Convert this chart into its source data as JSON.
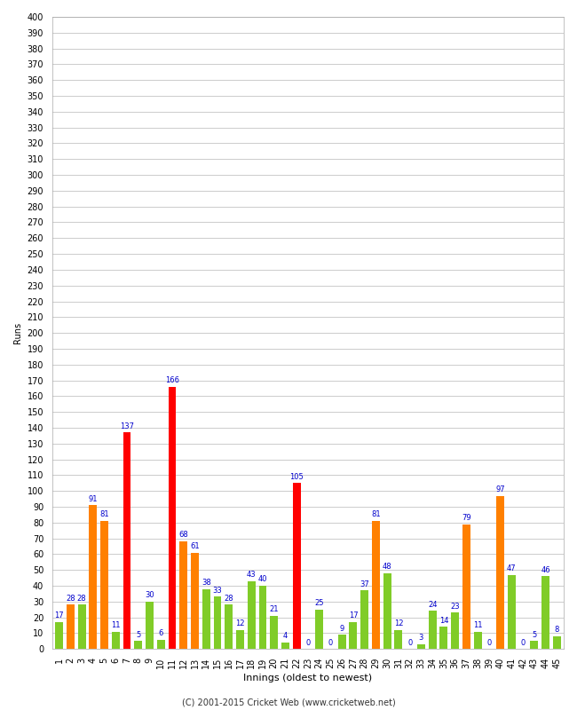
{
  "xlabel": "Innings (oldest to newest)",
  "ylabel": "Runs",
  "footer": "(C) 2001-2015 Cricket Web (www.cricketweb.net)",
  "ylim": [
    0,
    400
  ],
  "innings": [
    1,
    2,
    3,
    4,
    5,
    6,
    7,
    8,
    9,
    10,
    11,
    12,
    13,
    14,
    15,
    16,
    17,
    18,
    19,
    20,
    21,
    22,
    23,
    24,
    25,
    26,
    27,
    28,
    29,
    30,
    31,
    32,
    33,
    34,
    35,
    36,
    37,
    38,
    39,
    40,
    41,
    42,
    43,
    44,
    45
  ],
  "values": [
    17,
    28,
    28,
    91,
    81,
    11,
    137,
    5,
    30,
    6,
    166,
    68,
    61,
    38,
    33,
    28,
    12,
    43,
    40,
    21,
    4,
    105,
    0,
    25,
    0,
    9,
    17,
    37,
    81,
    48,
    12,
    0,
    3,
    24,
    14,
    23,
    79,
    11,
    0,
    97,
    47,
    0,
    5,
    46,
    8
  ],
  "colors": [
    "#80cc28",
    "#ff8000",
    "#80cc28",
    "#ff8000",
    "#ff8000",
    "#80cc28",
    "#ff0000",
    "#80cc28",
    "#80cc28",
    "#80cc28",
    "#ff0000",
    "#ff8000",
    "#ff8000",
    "#80cc28",
    "#80cc28",
    "#80cc28",
    "#80cc28",
    "#80cc28",
    "#80cc28",
    "#80cc28",
    "#80cc28",
    "#ff0000",
    "#80cc28",
    "#80cc28",
    "#80cc28",
    "#80cc28",
    "#80cc28",
    "#80cc28",
    "#ff8000",
    "#80cc28",
    "#80cc28",
    "#80cc28",
    "#80cc28",
    "#80cc28",
    "#80cc28",
    "#80cc28",
    "#ff8000",
    "#80cc28",
    "#80cc28",
    "#ff8000",
    "#80cc28",
    "#80cc28",
    "#80cc28",
    "#80cc28",
    "#80cc28"
  ],
  "bg_color": "#ffffff",
  "grid_color": "#cccccc",
  "label_color": "#0000cc",
  "axis_fontsize": 8,
  "tick_fontsize": 7,
  "value_fontsize": 6,
  "footer_fontsize": 7,
  "ylabel_fontsize": 7
}
